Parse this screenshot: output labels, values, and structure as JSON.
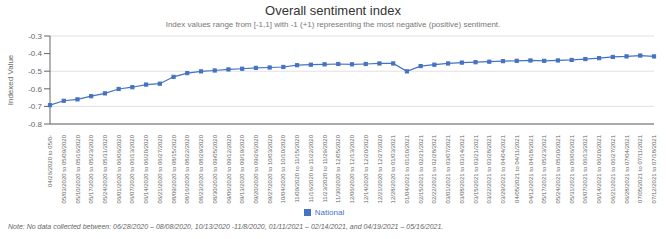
{
  "chart_data": {
    "type": "line",
    "title": "Overall sentiment index",
    "subtitle": "Index values range from [-1,1] with -1 (+1) representing the most negative (positive) sentiment.",
    "note": "Note: No data collected between: 06/28/2020 – 08/08/2020, 10/13/2020 -11/8/2020, 01/11/2021 – 02/14/2021, and 04/19/2021 – 05/16/2021.",
    "y_label": "Indexed Value",
    "categories": [
      "04/26/2020 to 05/0-",
      "05/03/2020 to 05/09/2020",
      "05/10/2020 to 05/16/2020",
      "05/17/2020 to 05/23/2020",
      "05/24/2020 to 05/31/2020",
      "06/01/2020 to 06/06/2020",
      "06/07/2020 to 06/13/2020",
      "06/14/2020 to 06/20/2020",
      "06/21/2020 to 06/27/2020",
      "08/09/2020 to 08/15/2020",
      "08/16/2020 to 08/22/2020",
      "08/23/2020 to 08/29/2020",
      "08/30/2020 to 09/05/2020",
      "09/06/2020 to 09/12/2020",
      "09/13/2020 to 09/19/2020",
      "09/20/2020 to 09/26/2020",
      "09/27/2020 to 10/03/2020",
      "10/04/2020 to 10/10/2020",
      "11/09/2020 to 11/15/2020",
      "11/16/2020 to 11/22/2020",
      "11/23/2020 to 11/29/2020",
      "11/30/2020 to 12/05/2020",
      "12/06/2020 to 12/13/2020",
      "12/14/2020 to 12/20/2020",
      "12/21/2020 to 12/27/2020",
      "12/28/2020 to 01/03/2021",
      "01/04/2021 to 01/10/2021",
      "02/15/2021 to 02/21/2021",
      "02/22/2021 to 02/28/2021",
      "03/01/2021 to 03/07/2021",
      "03/08/2021 to 03/14/2021",
      "03/15/2021 to 03/21/2021",
      "03/22/2021 to 03/28/2021",
      "03/29/2021 to 04/04/2021",
      "04/05/2021 to 04/11/2021",
      "04/12/2021 to 04/18/2021",
      "05/17/2021 to 05/23/2021",
      "05/24/2021 to 05/30/2021",
      "05/31/2021 to 06/06/2021",
      "06/07/2021 to 06/13/2021",
      "06/14/2021 to 06/20/2021",
      "06/21/2021 to 06/27/2021",
      "06/28/2021 to 07/04/2021",
      "07/05/2021 to 07/11/2021",
      "07/12/2021 to 07/18/2021"
    ],
    "series": [
      {
        "name": "National",
        "color": "#4472C4",
        "marker": "square",
        "values": [
          -0.693,
          -0.668,
          -0.66,
          -0.642,
          -0.626,
          -0.601,
          -0.591,
          -0.576,
          -0.571,
          -0.532,
          -0.511,
          -0.501,
          -0.496,
          -0.49,
          -0.486,
          -0.481,
          -0.479,
          -0.476,
          -0.466,
          -0.463,
          -0.461,
          -0.459,
          -0.461,
          -0.459,
          -0.456,
          -0.456,
          -0.501,
          -0.471,
          -0.463,
          -0.456,
          -0.451,
          -0.449,
          -0.446,
          -0.443,
          -0.441,
          -0.439,
          -0.441,
          -0.439,
          -0.436,
          -0.431,
          -0.426,
          -0.419,
          -0.416,
          -0.411,
          -0.416
        ]
      }
    ],
    "ylim": [
      -0.8,
      -0.3
    ],
    "yticks": [
      -0.8,
      -0.7,
      -0.6,
      -0.5,
      -0.4,
      -0.3
    ],
    "grid": true,
    "legend": "bottom"
  }
}
